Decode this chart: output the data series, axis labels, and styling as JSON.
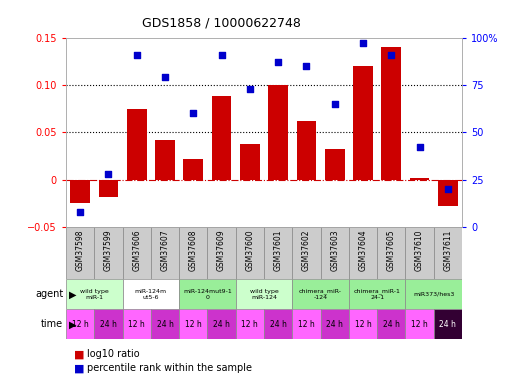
{
  "title": "GDS1858 / 10000622748",
  "samples": [
    "GSM37598",
    "GSM37599",
    "GSM37606",
    "GSM37607",
    "GSM37608",
    "GSM37609",
    "GSM37600",
    "GSM37601",
    "GSM37602",
    "GSM37603",
    "GSM37604",
    "GSM37605",
    "GSM37610",
    "GSM37611"
  ],
  "log10_ratio": [
    -0.025,
    -0.018,
    0.075,
    0.042,
    0.022,
    0.088,
    0.038,
    0.1,
    0.062,
    0.032,
    0.12,
    0.14,
    0.002,
    -0.028
  ],
  "percentile_rank": [
    8,
    28,
    91,
    79,
    60,
    91,
    73,
    87,
    85,
    65,
    97,
    91,
    42,
    20
  ],
  "ylim_left": [
    -0.05,
    0.15
  ],
  "ylim_right": [
    0,
    100
  ],
  "yticks_left": [
    -0.05,
    0,
    0.05,
    0.1,
    0.15
  ],
  "yticks_right": [
    0,
    25,
    50,
    75,
    100
  ],
  "bar_color": "#cc0000",
  "scatter_color": "#0000cc",
  "zero_line_color": "#cc0000",
  "agents": [
    {
      "label": "wild type\nmiR-1",
      "start": 0,
      "end": 2,
      "color": "#ccffcc"
    },
    {
      "label": "miR-124m\nut5-6",
      "start": 2,
      "end": 4,
      "color": "#ffffff"
    },
    {
      "label": "miR-124mut9-1\n0",
      "start": 4,
      "end": 6,
      "color": "#99ee99"
    },
    {
      "label": "wild type\nmiR-124",
      "start": 6,
      "end": 8,
      "color": "#ccffcc"
    },
    {
      "label": "chimera_miR-\n-124",
      "start": 8,
      "end": 10,
      "color": "#99ee99"
    },
    {
      "label": "chimera_miR-1\n24-1",
      "start": 10,
      "end": 12,
      "color": "#99ee99"
    },
    {
      "label": "miR373/hes3",
      "start": 12,
      "end": 14,
      "color": "#99ee99"
    }
  ],
  "time_labels": [
    "12 h",
    "24 h",
    "12 h",
    "24 h",
    "12 h",
    "24 h",
    "12 h",
    "24 h",
    "12 h",
    "24 h",
    "12 h",
    "24 h",
    "12 h",
    "24 h"
  ],
  "time_color_12": "#ff66ff",
  "time_color_24": "#cc33cc",
  "time_last_24_color": "#330033",
  "gsm_bg": "#cccccc",
  "legend_bar_label": "log10 ratio",
  "legend_scatter_label": "percentile rank within the sample"
}
